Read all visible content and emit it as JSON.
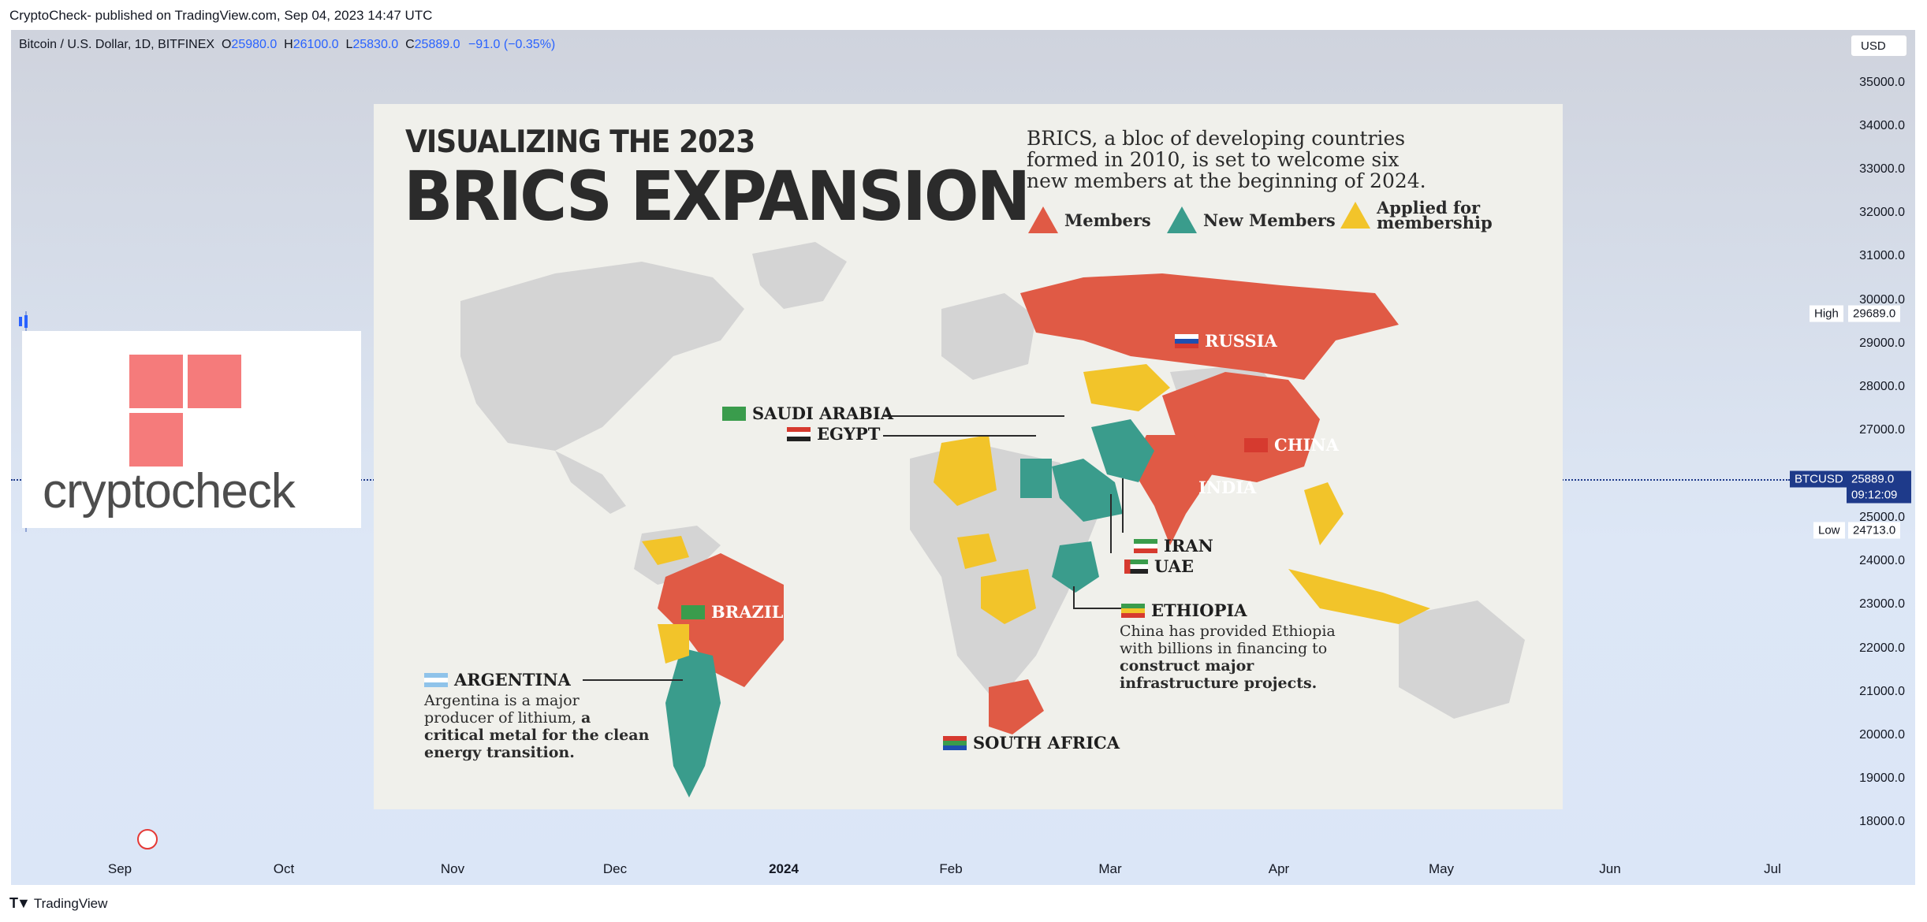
{
  "header": {
    "published": "CryptoCheck- published on TradingView.com, Sep 04, 2023 14:47 UTC"
  },
  "symbol": {
    "name": "Bitcoin / U.S. Dollar, 1D, BITFINEX",
    "o_label": "O",
    "o": "25980.0",
    "h_label": "H",
    "h": "26100.0",
    "l_label": "L",
    "l": "25830.0",
    "c_label": "C",
    "c": "25889.0",
    "change": "−91.0 (−0.35%)"
  },
  "currency": "USD",
  "chart_data": {
    "type": "table",
    "y_axis": {
      "ticks": [
        "35000.0",
        "34000.0",
        "33000.0",
        "32000.0",
        "31000.0",
        "30000.0",
        "29000.0",
        "28000.0",
        "27000.0",
        "25000.0",
        "24000.0",
        "23000.0",
        "22000.0",
        "21000.0",
        "20000.0",
        "19000.0",
        "18000.0"
      ],
      "range": [
        17700,
        35300
      ]
    },
    "x_axis": {
      "ticks": [
        "Sep",
        "Oct",
        "Nov",
        "Dec",
        "2024",
        "Feb",
        "Mar",
        "Apr",
        "May",
        "Jun",
        "Jul"
      ]
    },
    "high": {
      "label": "High",
      "value": "29689.0"
    },
    "low": {
      "label": "Low",
      "value": "24713.0"
    },
    "last": {
      "symbol": "BTCUSD",
      "value": "25889.0",
      "countdown": "09:12:09"
    }
  },
  "overlay_logo": {
    "word": "cryptocheck"
  },
  "infographic": {
    "title_line1": "VISUALIZING THE 2023",
    "title_line2": "BRICS EXPANSION",
    "description": "BRICS, a bloc of developing countries formed in 2010, is set to welcome six new members at the beginning of 2024.",
    "legend": {
      "members": "Members",
      "new_members": "New Members",
      "applied": "Applied for membership"
    },
    "colors": {
      "members": "#e05a45",
      "new_members": "#3a9c8c",
      "applied": "#f2c42a",
      "land": "#d4d4d4"
    },
    "labels": {
      "russia": "RUSSIA",
      "china": "CHINA",
      "india": "INDIA",
      "brazil": "BRAZIL",
      "saudi": "SAUDI ARABIA",
      "egypt": "EGYPT",
      "iran": "IRAN",
      "uae": "UAE",
      "ethiopia": "ETHIOPIA",
      "argentina": "ARGENTINA",
      "south_africa": "SOUTH AFRICA"
    },
    "ethiopia_note_plain": "China has provided Ethiopia with billions in financing to ",
    "ethiopia_note_bold": "construct major infrastructure projects.",
    "argentina_note_plain": "Argentina is a major producer of lithium, ",
    "argentina_note_bold": "a critical metal for the clean energy transition."
  },
  "footer": {
    "brand": "TradingView"
  }
}
